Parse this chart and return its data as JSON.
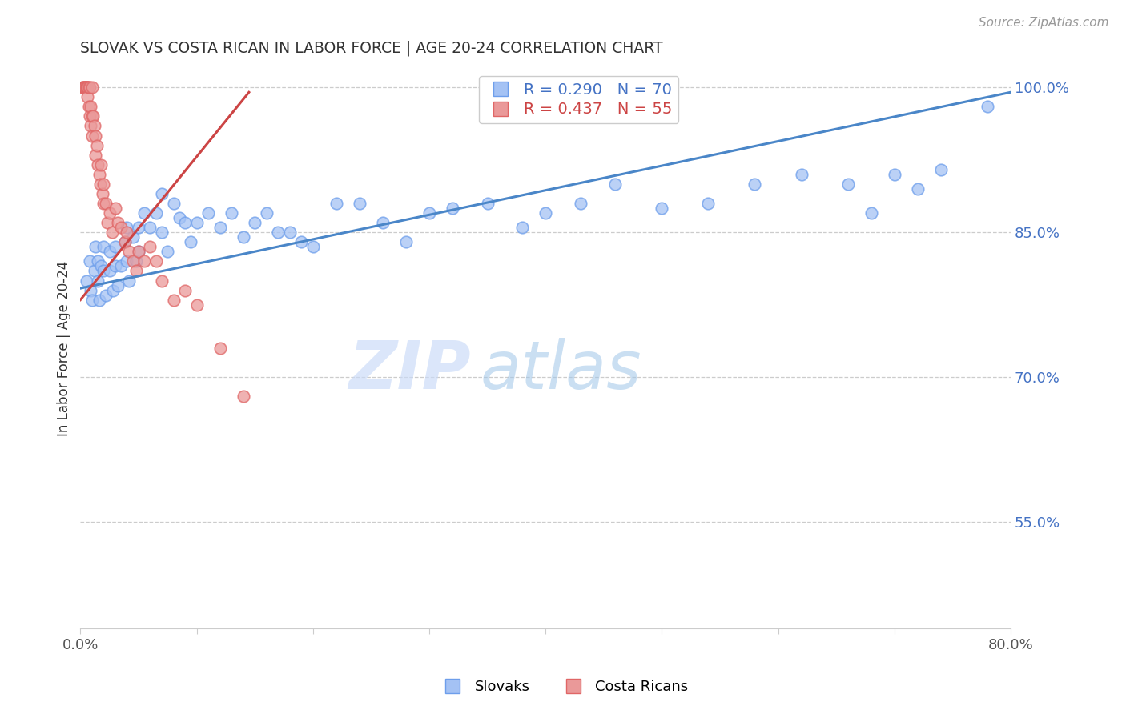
{
  "title": "SLOVAK VS COSTA RICAN IN LABOR FORCE | AGE 20-24 CORRELATION CHART",
  "source_text": "Source: ZipAtlas.com",
  "ylabel": "In Labor Force | Age 20-24",
  "blue_label": "Slovaks",
  "pink_label": "Costa Ricans",
  "blue_R": 0.29,
  "blue_N": 70,
  "pink_R": 0.437,
  "pink_N": 55,
  "blue_color": "#a4c2f4",
  "pink_color": "#ea9999",
  "blue_edge_color": "#6d9eeb",
  "pink_edge_color": "#e06666",
  "blue_line_color": "#4a86c8",
  "pink_line_color": "#cc4444",
  "xlim": [
    0.0,
    0.8
  ],
  "ylim": [
    0.44,
    1.02
  ],
  "right_yticks": [
    1.0,
    0.85,
    0.7,
    0.55
  ],
  "right_yticklabels": [
    "100.0%",
    "85.0%",
    "70.0%",
    "55.0%"
  ],
  "watermark_zip": "ZIP",
  "watermark_atlas": "atlas",
  "blue_x": [
    0.005,
    0.008,
    0.009,
    0.01,
    0.012,
    0.013,
    0.015,
    0.015,
    0.016,
    0.018,
    0.02,
    0.02,
    0.022,
    0.025,
    0.025,
    0.028,
    0.03,
    0.03,
    0.032,
    0.035,
    0.038,
    0.04,
    0.04,
    0.042,
    0.045,
    0.048,
    0.05,
    0.05,
    0.055,
    0.06,
    0.065,
    0.07,
    0.07,
    0.075,
    0.08,
    0.085,
    0.09,
    0.095,
    0.1,
    0.11,
    0.12,
    0.13,
    0.14,
    0.15,
    0.16,
    0.17,
    0.18,
    0.19,
    0.2,
    0.22,
    0.24,
    0.26,
    0.28,
    0.3,
    0.32,
    0.35,
    0.38,
    0.4,
    0.43,
    0.46,
    0.5,
    0.54,
    0.58,
    0.62,
    0.66,
    0.68,
    0.7,
    0.72,
    0.74,
    0.78
  ],
  "blue_y": [
    0.8,
    0.82,
    0.79,
    0.78,
    0.81,
    0.835,
    0.82,
    0.8,
    0.78,
    0.815,
    0.835,
    0.81,
    0.785,
    0.83,
    0.81,
    0.79,
    0.835,
    0.815,
    0.795,
    0.815,
    0.84,
    0.855,
    0.82,
    0.8,
    0.845,
    0.82,
    0.855,
    0.83,
    0.87,
    0.855,
    0.87,
    0.89,
    0.85,
    0.83,
    0.88,
    0.865,
    0.86,
    0.84,
    0.86,
    0.87,
    0.855,
    0.87,
    0.845,
    0.86,
    0.87,
    0.85,
    0.85,
    0.84,
    0.835,
    0.88,
    0.88,
    0.86,
    0.84,
    0.87,
    0.875,
    0.88,
    0.855,
    0.87,
    0.88,
    0.9,
    0.875,
    0.88,
    0.9,
    0.91,
    0.9,
    0.87,
    0.91,
    0.895,
    0.915,
    0.98
  ],
  "pink_x": [
    0.002,
    0.002,
    0.003,
    0.003,
    0.004,
    0.004,
    0.005,
    0.005,
    0.005,
    0.006,
    0.006,
    0.006,
    0.007,
    0.007,
    0.008,
    0.008,
    0.009,
    0.009,
    0.01,
    0.01,
    0.01,
    0.011,
    0.012,
    0.013,
    0.013,
    0.014,
    0.015,
    0.016,
    0.017,
    0.018,
    0.019,
    0.02,
    0.02,
    0.022,
    0.023,
    0.025,
    0.027,
    0.03,
    0.032,
    0.035,
    0.038,
    0.04,
    0.042,
    0.045,
    0.048,
    0.05,
    0.055,
    0.06,
    0.065,
    0.07,
    0.08,
    0.09,
    0.1,
    0.12,
    0.14
  ],
  "pink_y": [
    1.0,
    1.0,
    1.0,
    1.0,
    1.0,
    1.0,
    1.0,
    1.0,
    1.0,
    1.0,
    1.0,
    0.99,
    1.0,
    0.98,
    1.0,
    0.97,
    0.98,
    0.96,
    1.0,
    0.97,
    0.95,
    0.97,
    0.96,
    0.95,
    0.93,
    0.94,
    0.92,
    0.91,
    0.9,
    0.92,
    0.89,
    0.9,
    0.88,
    0.88,
    0.86,
    0.87,
    0.85,
    0.875,
    0.86,
    0.855,
    0.84,
    0.85,
    0.83,
    0.82,
    0.81,
    0.83,
    0.82,
    0.835,
    0.82,
    0.8,
    0.78,
    0.79,
    0.775,
    0.73,
    0.68
  ],
  "blue_trend_x": [
    0.0,
    0.8
  ],
  "blue_trend_y": [
    0.792,
    0.995
  ],
  "pink_trend_x": [
    0.0,
    0.145
  ],
  "pink_trend_y": [
    0.78,
    0.995
  ]
}
